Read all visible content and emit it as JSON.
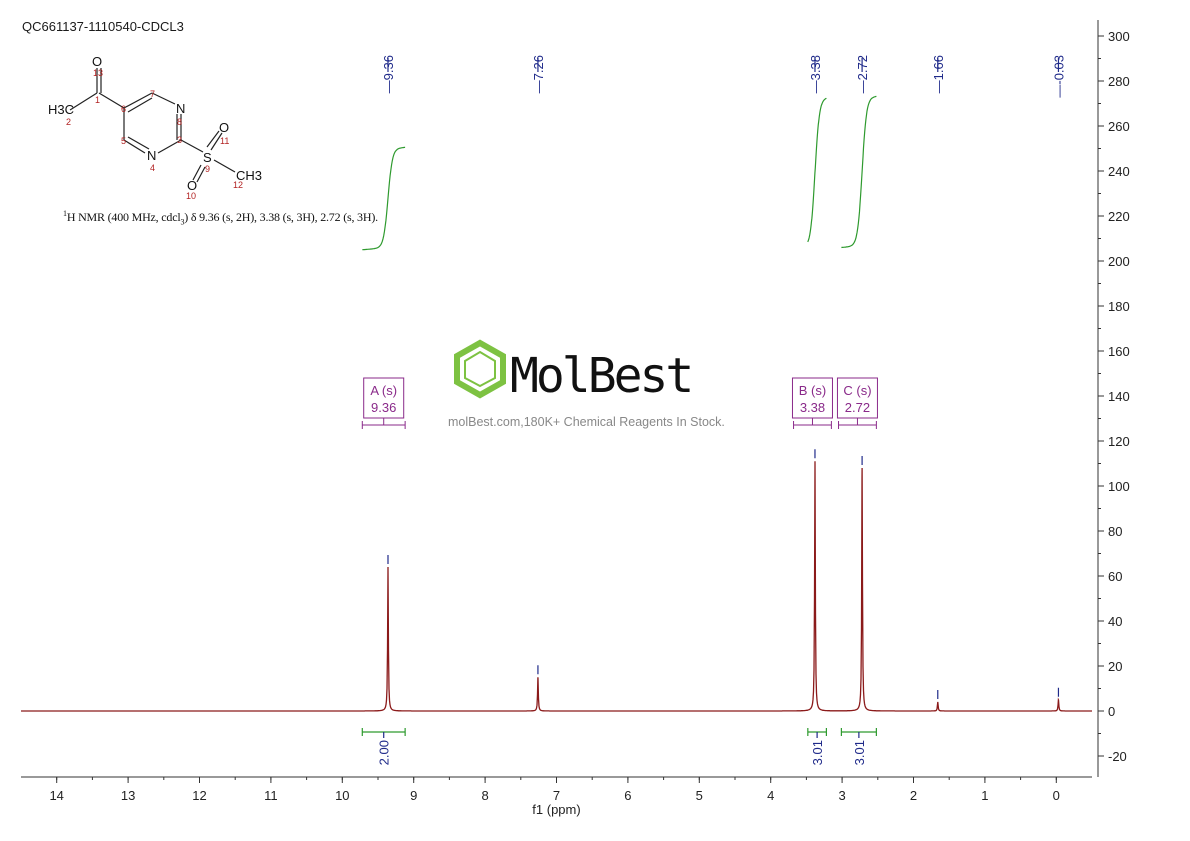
{
  "sample_id": "QC661137-1110540-CDCL3",
  "nmr_description": {
    "nucleus_sup": "1",
    "prefix": "H NMR (400 MHz, cdcl",
    "sub": "3",
    "suffix": ") δ 9.36 (s, 2H), 3.38 (s, 3H), 2.72 (s, 3H)."
  },
  "watermark": {
    "brand": "MolBest",
    "tagline": "molBest.com,180K+ Chemical Reagents In Stock."
  },
  "structure": {
    "atoms": {
      "o13": "O",
      "n13": "13",
      "c1": "1",
      "c6": "6",
      "c7": "7",
      "n8_sym": "N",
      "n8": "8",
      "c3": "3",
      "c5": "5",
      "n4_sym": "N",
      "n4": "4",
      "s9_sym": "S",
      "s9": "9",
      "o11_sym": "O",
      "o11": "11",
      "o10_sym": "O",
      "o10": "10",
      "c12_sym": "CH3",
      "c12": "12",
      "c2_sym": "H3C",
      "c2": "2"
    }
  },
  "colors": {
    "spectrum": "#8b1a1a",
    "peak_label": "#1f2a8a",
    "integral_curve": "#2e9a2e",
    "integral_bracket": "#2e9a2e",
    "multiplet_box": "#8a2a8a",
    "atom_label": "#b22222",
    "watermark_green": "#7dc242"
  },
  "chart_data": {
    "type": "line",
    "title": "",
    "xlabel": "f1 (ppm)",
    "ylabel": "",
    "xlim": [
      14.5,
      -0.5
    ],
    "x_reversed": true,
    "ylim": [
      -25,
      305
    ],
    "x_ticks": [
      14,
      13,
      12,
      11,
      10,
      9,
      8,
      7,
      6,
      5,
      4,
      3,
      2,
      1,
      0
    ],
    "y_ticks": [
      300,
      280,
      260,
      240,
      220,
      200,
      180,
      160,
      140,
      120,
      100,
      80,
      60,
      40,
      20,
      0,
      -20
    ],
    "series": [
      {
        "peaks": [
          {
            "ppm": 9.36,
            "height": 64
          },
          {
            "ppm": 7.26,
            "height": 15
          },
          {
            "ppm": 3.38,
            "height": 111
          },
          {
            "ppm": 2.72,
            "height": 108
          },
          {
            "ppm": 1.66,
            "height": 4
          },
          {
            "ppm": -0.03,
            "height": 5
          }
        ]
      }
    ],
    "peak_labels": [
      "9.36",
      "7.26",
      "3.38",
      "2.72",
      "1.66",
      "-0.03"
    ],
    "multiplets": [
      {
        "label": "A (s)",
        "shift": "9.36",
        "range": [
          9.72,
          9.12
        ]
      },
      {
        "label": "B (s)",
        "shift": "3.38",
        "range": [
          3.68,
          3.15
        ]
      },
      {
        "label": "C (s)",
        "shift": "2.72",
        "range": [
          3.05,
          2.52
        ]
      }
    ],
    "integrals": [
      {
        "value": "2.00",
        "range": [
          9.72,
          9.12
        ],
        "curve_bottom": 205,
        "curve_top": 249
      },
      {
        "value": "3.01",
        "range": [
          3.48,
          3.22
        ],
        "curve_bottom": 206,
        "curve_top": 272
      },
      {
        "value": "3.01",
        "range": [
          3.01,
          2.52
        ],
        "curve_bottom": 206,
        "curve_top": 272
      }
    ]
  }
}
